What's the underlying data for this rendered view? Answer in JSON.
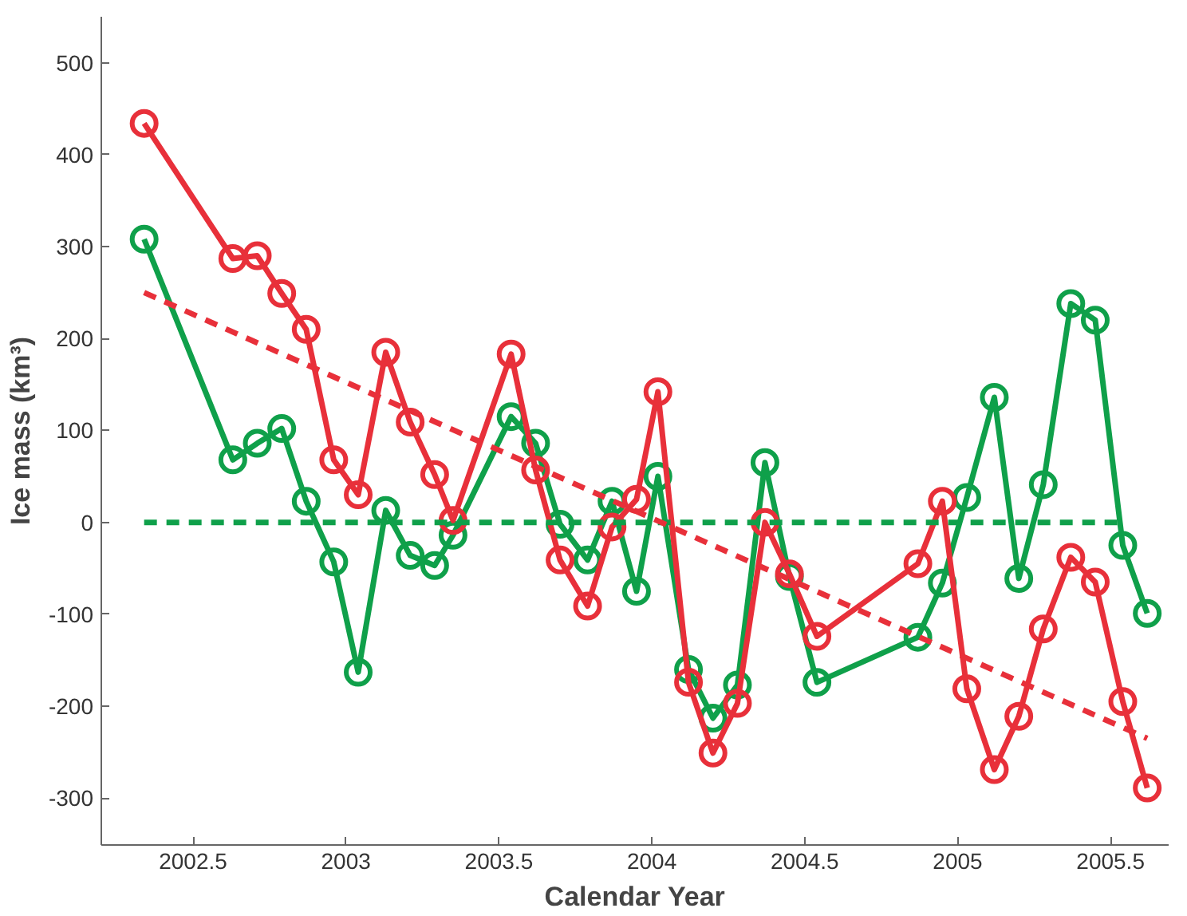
{
  "chart_data": {
    "type": "line",
    "xlabel": "Calendar Year",
    "ylabel": "Ice mass (km³)",
    "xlim": [
      2002.2,
      2005.69
    ],
    "ylim": [
      -351,
      550
    ],
    "xticks": [
      2002.5,
      2003,
      2003.5,
      2004,
      2004.5,
      2005,
      2005.5
    ],
    "yticks": [
      -300,
      -200,
      -100,
      0,
      100,
      200,
      300,
      400,
      500
    ],
    "grid": false,
    "marker": "circle",
    "line_style": "solid",
    "series": [
      {
        "color": "#0fa04a",
        "x": [
          2002.34,
          2002.63,
          2002.71,
          2002.79,
          2002.87,
          2002.96,
          2003.04,
          2003.13,
          2003.21,
          2003.29,
          2003.35,
          2003.54,
          2003.62,
          2003.7,
          2003.79,
          2003.87,
          2003.95,
          2004.02,
          2004.12,
          2004.2,
          2004.28,
          2004.37,
          2004.45,
          2004.54,
          2004.87,
          2004.95,
          2005.03,
          2005.12,
          2005.2,
          2005.28,
          2005.37,
          2005.45,
          2005.54,
          2005.62
        ],
        "values": [
          308,
          68,
          86,
          102,
          23,
          -43,
          -163,
          13,
          -36,
          -47,
          -14,
          115,
          86,
          -2,
          -41,
          23,
          -75,
          50,
          -160,
          -213,
          -177,
          65,
          -59,
          -174,
          -125,
          -66,
          27,
          136,
          -61,
          41,
          238,
          220,
          -25,
          -99
        ]
      },
      {
        "color": "#e8303a",
        "x": [
          2002.34,
          2002.63,
          2002.71,
          2002.79,
          2002.87,
          2002.96,
          2003.04,
          2003.13,
          2003.21,
          2003.29,
          2003.35,
          2003.54,
          2003.62,
          2003.7,
          2003.79,
          2003.87,
          2003.95,
          2004.02,
          2004.12,
          2004.2,
          2004.28,
          2004.37,
          2004.45,
          2004.54,
          2004.87,
          2004.95,
          2005.03,
          2005.12,
          2005.2,
          2005.28,
          2005.37,
          2005.45,
          2005.54,
          2005.62
        ],
        "values": [
          434,
          287,
          290,
          249,
          210,
          68,
          30,
          185,
          109,
          52,
          2,
          183,
          57,
          -41,
          -91,
          -5,
          25,
          142,
          -174,
          -251,
          -197,
          0,
          -56,
          -124,
          -45,
          23,
          -181,
          -269,
          -211,
          -116,
          -38,
          -65,
          -195,
          -289
        ]
      },
      {
        "color": "#0fa04a",
        "marker": "none",
        "line_style": "dashed",
        "x": [
          2002.34,
          2005.54
        ],
        "values": [
          0,
          0
        ]
      },
      {
        "color": "#e8303a",
        "marker": "none",
        "line_style": "dashed",
        "x": [
          2002.34,
          2005.62
        ],
        "values": [
          250,
          -235
        ]
      }
    ]
  }
}
